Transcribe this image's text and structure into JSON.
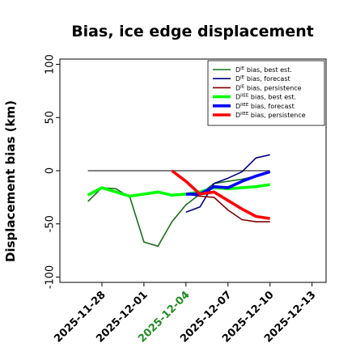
{
  "chart_data": {
    "type": "line",
    "title": "Bias, ice edge displacement",
    "xlabel": "",
    "ylabel": "Displacement bias (km)",
    "xlim": [
      "2025-11-25",
      "2025-12-14"
    ],
    "ylim": [
      -105,
      105
    ],
    "yticks": [
      100,
      50,
      0,
      -50,
      -100
    ],
    "xticks": [
      "2025-11-28",
      "2025-12-01",
      "2025-12-04",
      "2025-12-07",
      "2025-12-10",
      "2025-12-13"
    ],
    "highlighted_xtick": "2025-12-04",
    "highlight_color": "#228b22",
    "reference_line": 0,
    "legend_position": "upper-right",
    "series": [
      {
        "name": "D^IE bias, best est.",
        "color": "#1a6e1a",
        "width": 1.6,
        "x": [
          "2025-11-27",
          "2025-11-28",
          "2025-11-29",
          "2025-11-30",
          "2025-12-01",
          "2025-12-02",
          "2025-12-03",
          "2025-12-04",
          "2025-12-05",
          "2025-12-06",
          "2025-12-07",
          "2025-12-08",
          "2025-12-09",
          "2025-12-10"
        ],
        "y": [
          -29,
          -16,
          -17,
          -25,
          -67,
          -71,
          -48,
          -32,
          -22,
          -12,
          -10,
          -8,
          -5,
          -1
        ]
      },
      {
        "name": "D^IE bias, forecast",
        "color": "#000080",
        "width": 1.6,
        "x": [
          "2025-12-04",
          "2025-12-05",
          "2025-12-06",
          "2025-12-07",
          "2025-12-08",
          "2025-12-09",
          "2025-12-10"
        ],
        "y": [
          -39,
          -34,
          -12,
          -7,
          -1,
          12,
          15
        ]
      },
      {
        "name": "D^IE bias, persistence",
        "color": "#800000",
        "width": 1.6,
        "x": [
          "2025-12-04",
          "2025-12-05",
          "2025-12-06",
          "2025-12-07",
          "2025-12-08",
          "2025-12-09",
          "2025-12-10"
        ],
        "y": [
          -22,
          -24,
          -25,
          -37,
          -46,
          -48,
          -48
        ]
      },
      {
        "name": "D^IIEE bias, best est.",
        "color": "#00ff00",
        "width": 3.6,
        "x": [
          "2025-11-27",
          "2025-11-28",
          "2025-11-29",
          "2025-11-30",
          "2025-12-01",
          "2025-12-02",
          "2025-12-03",
          "2025-12-04",
          "2025-12-05",
          "2025-12-06",
          "2025-12-07",
          "2025-12-08",
          "2025-12-09",
          "2025-12-10"
        ],
        "y": [
          -23,
          -16,
          -20,
          -24,
          -22,
          -20,
          -23,
          -22,
          -20,
          -16,
          -17,
          -16,
          -15,
          -13
        ]
      },
      {
        "name": "D^IIEE bias, forecast",
        "color": "#0000ff",
        "width": 3.6,
        "x": [
          "2025-12-04",
          "2025-12-05",
          "2025-12-06",
          "2025-12-07",
          "2025-12-08",
          "2025-12-09",
          "2025-12-10"
        ],
        "y": [
          -22,
          -22,
          -15,
          -16,
          -10,
          -5,
          -1
        ]
      },
      {
        "name": "D^IIEE bias, persistence",
        "color": "#ff0000",
        "width": 3.6,
        "x": [
          "2025-12-03",
          "2025-12-04",
          "2025-12-05",
          "2025-12-06",
          "2025-12-07",
          "2025-12-08",
          "2025-12-09",
          "2025-12-10"
        ],
        "y": [
          0,
          -10,
          -22,
          -20,
          -28,
          -36,
          -43,
          -45
        ]
      }
    ]
  }
}
